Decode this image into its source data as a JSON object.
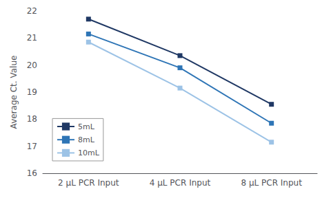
{
  "chart_data": {
    "type": "line",
    "ylabel": "Average Ct. Value",
    "categories": [
      "2 μL PCR Input",
      "4 μL PCR Input",
      "8 μL PCR Input"
    ],
    "series": [
      {
        "name": "5mL",
        "color": "#1F3864",
        "marker": "square",
        "values": [
          21.7,
          20.35,
          18.55
        ]
      },
      {
        "name": "8mL",
        "color": "#2E75B6",
        "marker": "square",
        "values": [
          21.15,
          19.9,
          17.85
        ]
      },
      {
        "name": "10mL",
        "color": "#9DC3E6",
        "marker": "square",
        "values": [
          20.85,
          19.15,
          17.15
        ]
      }
    ],
    "ylim": [
      16,
      22
    ],
    "yticks": [
      16,
      17,
      18,
      19,
      20,
      21,
      22
    ],
    "grid": false,
    "legend": "lower left"
  }
}
